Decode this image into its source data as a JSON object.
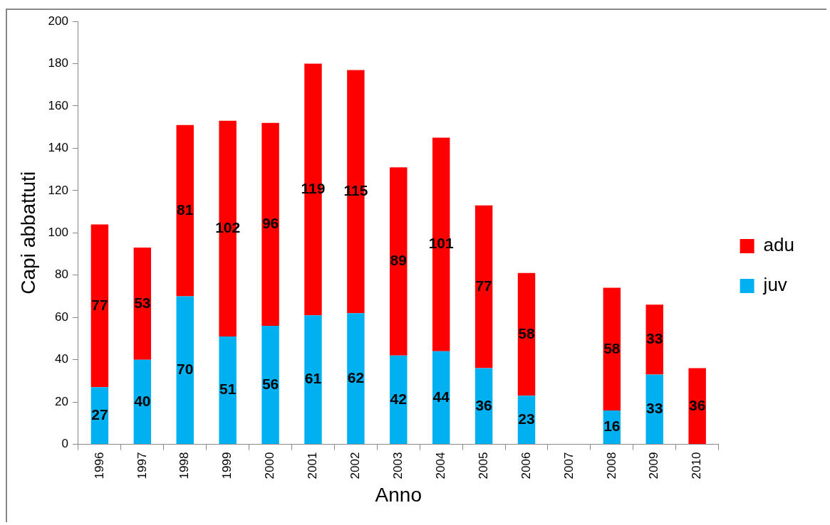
{
  "chart_data": {
    "type": "bar",
    "stacked": true,
    "xlabel": "Anno",
    "ylabel": "Capi abbattuti",
    "categories": [
      "1996",
      "1997",
      "1998",
      "1999",
      "2000",
      "2001",
      "2002",
      "2003",
      "2004",
      "2005",
      "2006",
      "2007",
      "2008",
      "2009",
      "2010"
    ],
    "series": [
      {
        "name": "juv",
        "color": "#00b0f0",
        "values": [
          27,
          40,
          70,
          51,
          56,
          61,
          62,
          42,
          44,
          36,
          23,
          null,
          16,
          33,
          null
        ]
      },
      {
        "name": "adu",
        "color": "#ff0000",
        "values": [
          77,
          53,
          81,
          102,
          96,
          119,
          115,
          89,
          101,
          77,
          58,
          null,
          58,
          33,
          36
        ]
      }
    ],
    "ylim": [
      0,
      200
    ],
    "yticks": [
      0,
      20,
      40,
      60,
      80,
      100,
      120,
      140,
      160,
      180,
      200
    ],
    "grid": false,
    "legend": "right",
    "data_labels": true
  }
}
